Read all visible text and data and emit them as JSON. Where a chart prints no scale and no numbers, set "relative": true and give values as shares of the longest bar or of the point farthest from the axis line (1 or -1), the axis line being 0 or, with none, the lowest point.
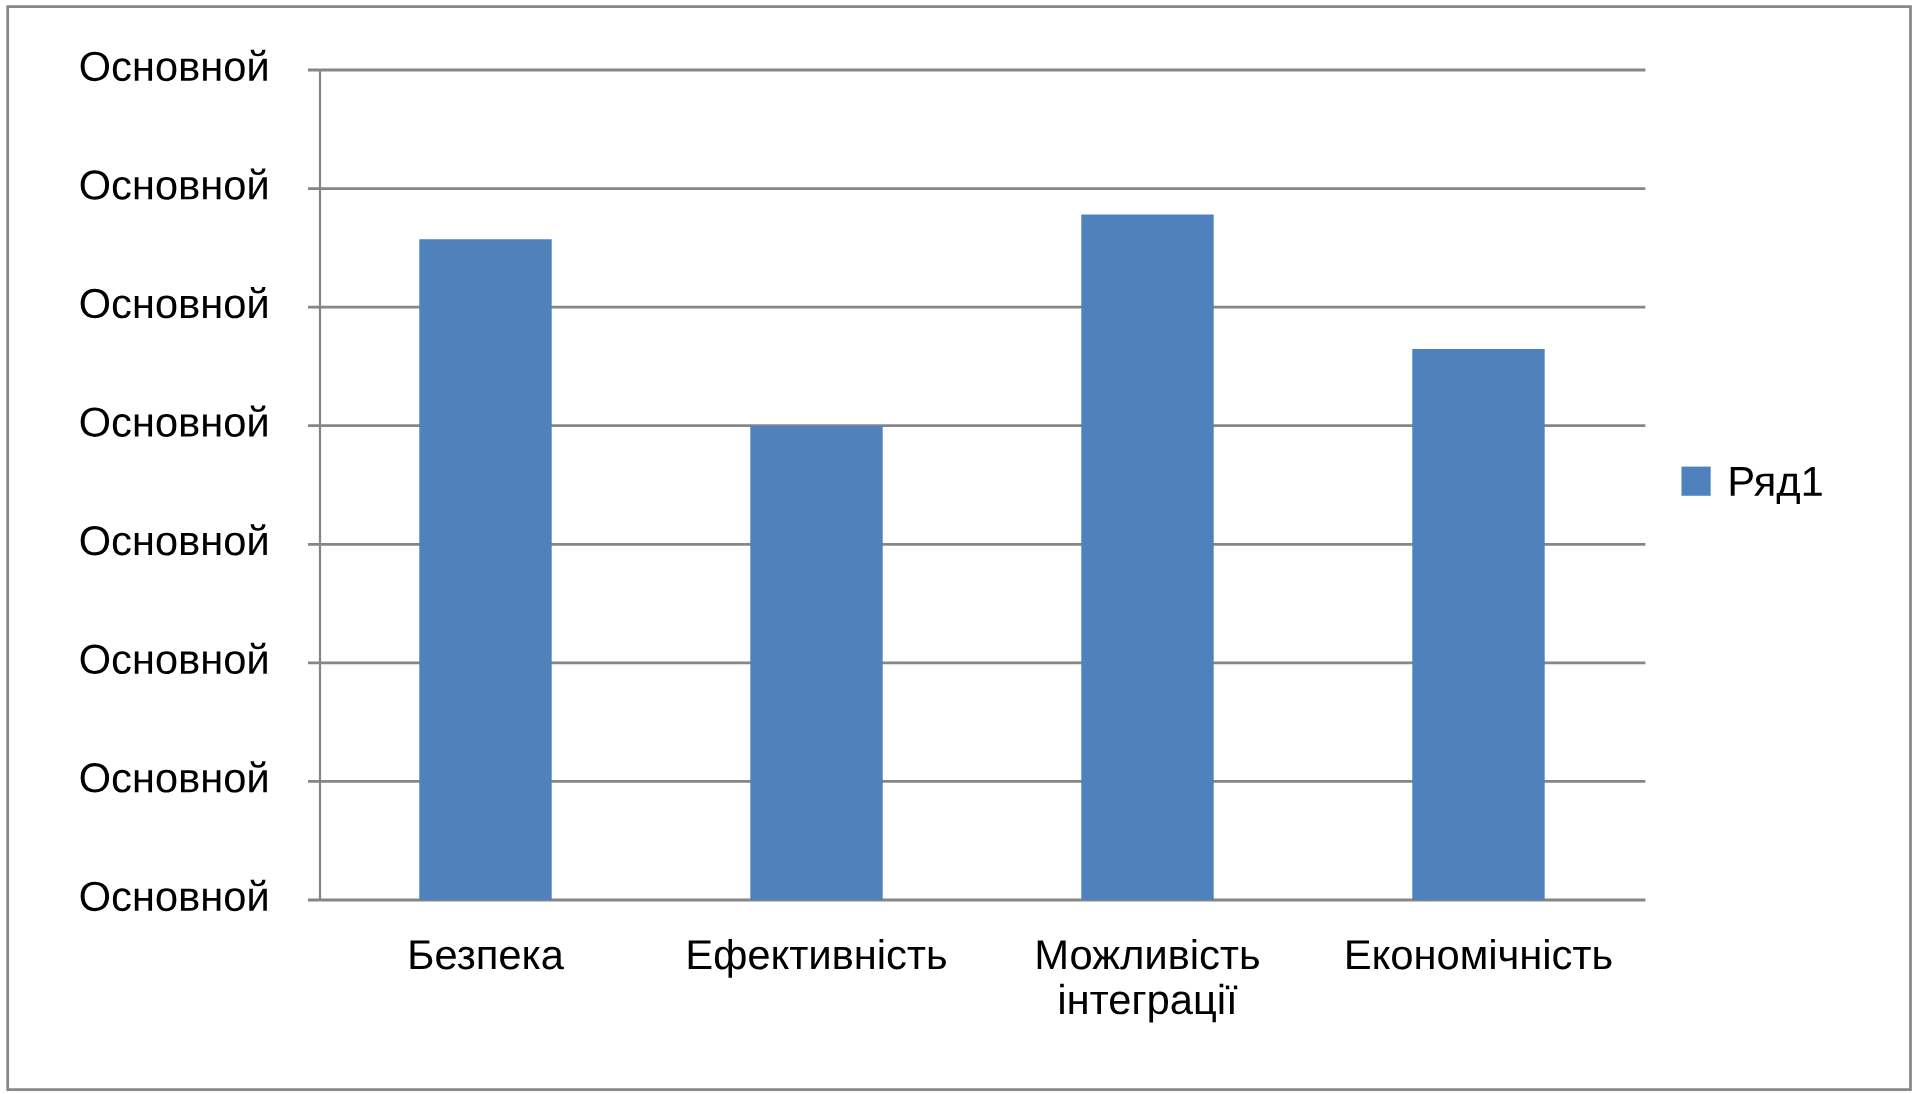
{
  "chart_data": {
    "type": "bar",
    "relative": true,
    "categories": [
      "Безпека",
      "Ефективність",
      "Можливість\nінтеграції",
      "Економічність"
    ],
    "series": [
      {
        "name": "Ряд1",
        "color": "#4f81bd",
        "values": [
          0.964,
          0.692,
          1,
          0.804
        ]
      }
    ],
    "ylim": [
      0,
      1.211
    ],
    "annotations": [
      "Основной",
      "Основной",
      "Основной",
      "Основной",
      "Основной",
      "Основной",
      "Основной",
      "Основной"
    ],
    "grid": "y",
    "legend": "right"
  }
}
